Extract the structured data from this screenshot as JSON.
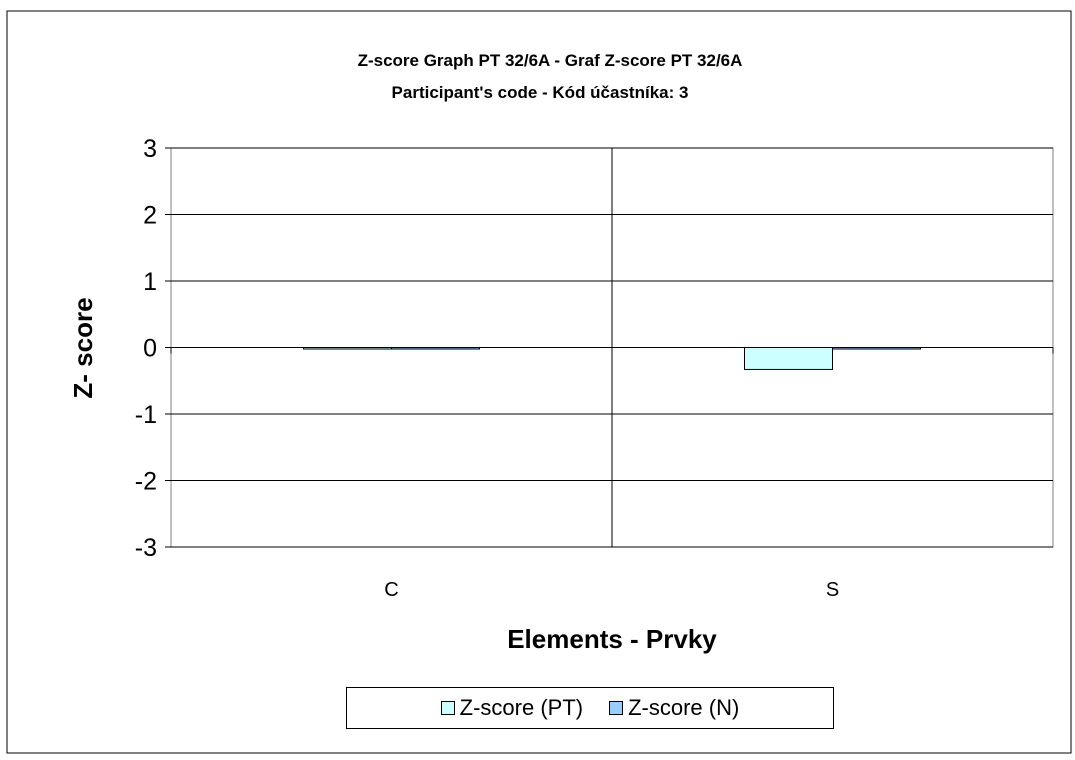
{
  "chart_data": {
    "type": "bar",
    "title_line1": "Z-score Graph PT 32/6A - Graf Z-score PT 32/6A",
    "title_line2": "Participant's code - Kód účastníka:  3",
    "xlabel": "Elements - Prvky",
    "ylabel": "Z- score",
    "categories": [
      "C",
      "S"
    ],
    "ylim": [
      -3,
      3
    ],
    "yticks": [
      3,
      2,
      1,
      0,
      -1,
      -2,
      -3
    ],
    "series": [
      {
        "name": "Z-score (PT)",
        "color": "#ccffff",
        "values": [
          0,
          -0.33
        ]
      },
      {
        "name": "Z-score (N)",
        "color": "#99ccff",
        "values": [
          0,
          0
        ]
      }
    ],
    "grid": true,
    "legend": "bottom"
  }
}
